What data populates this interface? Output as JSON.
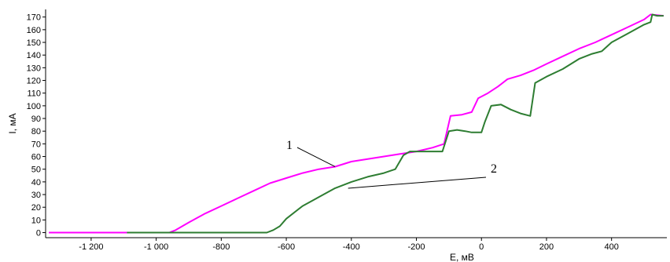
{
  "chart_data": {
    "type": "line",
    "title": "",
    "xlabel": "E, мВ",
    "ylabel": "I, мА",
    "xlim": [
      -1340,
      570
    ],
    "ylim": [
      -4,
      176
    ],
    "grid": false,
    "x_ticks": [
      -1200,
      -1000,
      -800,
      -600,
      -400,
      -200,
      0,
      200,
      400
    ],
    "x_tick_labels": [
      "-1 200",
      "-1 000",
      "-800",
      "-600",
      "-400",
      "-200",
      "0",
      "200",
      "400"
    ],
    "y_ticks": [
      0,
      10,
      20,
      30,
      40,
      50,
      60,
      70,
      80,
      90,
      100,
      110,
      120,
      130,
      140,
      150,
      160,
      170
    ],
    "y_tick_labels": [
      "0",
      "10",
      "20",
      "30",
      "40",
      "50",
      "60",
      "70",
      "80",
      "90",
      "100",
      "110",
      "120",
      "130",
      "140",
      "150",
      "160",
      "170"
    ],
    "series": [
      {
        "label": "1",
        "color": "#ff00ff",
        "points": [
          [
            -1330,
            0
          ],
          [
            -1000,
            0
          ],
          [
            -960,
            0
          ],
          [
            -940,
            2
          ],
          [
            -900,
            8
          ],
          [
            -850,
            15
          ],
          [
            -800,
            21
          ],
          [
            -750,
            27
          ],
          [
            -700,
            33
          ],
          [
            -650,
            39
          ],
          [
            -600,
            43
          ],
          [
            -550,
            47
          ],
          [
            -500,
            50
          ],
          [
            -450,
            52
          ],
          [
            -400,
            56
          ],
          [
            -350,
            58
          ],
          [
            -300,
            60
          ],
          [
            -250,
            62
          ],
          [
            -200,
            64
          ],
          [
            -150,
            67
          ],
          [
            -115,
            70
          ],
          [
            -95,
            92
          ],
          [
            -60,
            93
          ],
          [
            -30,
            95
          ],
          [
            -10,
            106
          ],
          [
            20,
            110
          ],
          [
            50,
            115
          ],
          [
            80,
            121
          ],
          [
            120,
            124
          ],
          [
            160,
            128
          ],
          [
            200,
            133
          ],
          [
            250,
            139
          ],
          [
            300,
            145
          ],
          [
            350,
            150
          ],
          [
            400,
            156
          ],
          [
            450,
            162
          ],
          [
            500,
            168
          ],
          [
            520,
            172
          ],
          [
            560,
            171
          ]
        ]
      },
      {
        "label": "2",
        "color": "#2e7d32",
        "points": [
          [
            -1090,
            0
          ],
          [
            -700,
            0
          ],
          [
            -660,
            0
          ],
          [
            -640,
            2
          ],
          [
            -620,
            5
          ],
          [
            -600,
            11
          ],
          [
            -550,
            21
          ],
          [
            -500,
            28
          ],
          [
            -450,
            35
          ],
          [
            -400,
            40
          ],
          [
            -350,
            44
          ],
          [
            -300,
            47
          ],
          [
            -265,
            50
          ],
          [
            -240,
            61
          ],
          [
            -220,
            64
          ],
          [
            -150,
            64
          ],
          [
            -120,
            64
          ],
          [
            -100,
            80
          ],
          [
            -75,
            81
          ],
          [
            -50,
            80
          ],
          [
            -30,
            79
          ],
          [
            0,
            79
          ],
          [
            10,
            87
          ],
          [
            30,
            100
          ],
          [
            60,
            101
          ],
          [
            90,
            97
          ],
          [
            120,
            94
          ],
          [
            150,
            92
          ],
          [
            165,
            118
          ],
          [
            200,
            123
          ],
          [
            250,
            129
          ],
          [
            300,
            137
          ],
          [
            340,
            141
          ],
          [
            370,
            143
          ],
          [
            400,
            150
          ],
          [
            450,
            157
          ],
          [
            500,
            164
          ],
          [
            520,
            166
          ],
          [
            525,
            172
          ],
          [
            540,
            171
          ],
          [
            560,
            171
          ]
        ]
      }
    ],
    "annotations": [
      {
        "text": "1",
        "target": [
          -450,
          52
        ]
      },
      {
        "text": "2",
        "target": [
          -410,
          35
        ]
      }
    ]
  }
}
